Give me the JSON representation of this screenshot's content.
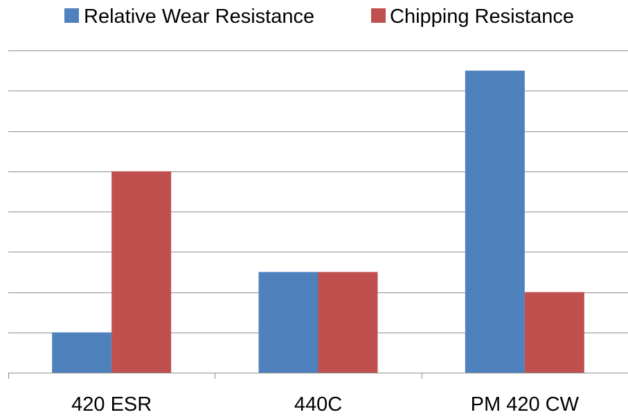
{
  "chart_data": {
    "type": "bar",
    "title": "",
    "xlabel": "",
    "ylabel": "",
    "categories": [
      "420 ESR",
      "440C",
      "PM 420 CW"
    ],
    "series": [
      {
        "name": "Relative Wear Resistance",
        "values": [
          1,
          2.5,
          7.5
        ]
      },
      {
        "name": "Chipping Resistance",
        "values": [
          5,
          2.5,
          2
        ]
      }
    ],
    "ylim": [
      0,
      8
    ],
    "grid": true,
    "legend": "top",
    "colors": [
      "#4F81BD",
      "#C0504D"
    ]
  }
}
